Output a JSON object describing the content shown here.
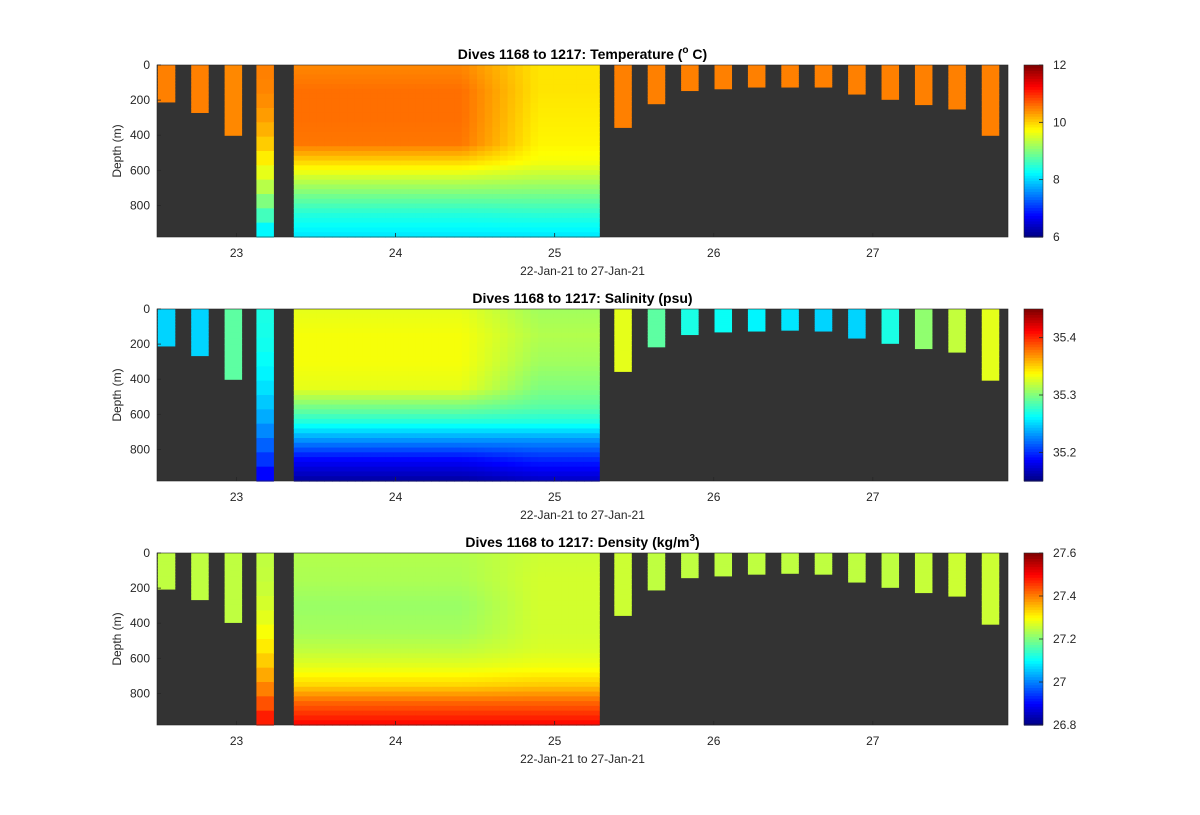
{
  "figure": {
    "background": "#ffffff",
    "plot_background": "#333333",
    "colormap": "jet"
  },
  "chart_data": [
    {
      "type": "heatmap",
      "title_text": "Dives 1168 to 1217: Temperature (",
      "title_sup": "o",
      "title_tail": " C)",
      "xlabel": "22-Jan-21 to 27-Jan-21",
      "ylabel": "Depth (m)",
      "xlim": [
        22.5,
        27.85
      ],
      "ylim": [
        0,
        980
      ],
      "y_reversed": true,
      "xticks": [
        "23",
        "24",
        "25",
        "26",
        "27"
      ],
      "yticks": [
        "0",
        "200",
        "400",
        "600",
        "800"
      ],
      "colorbar": {
        "clim": [
          6,
          12
        ],
        "ticks": [
          "6",
          "8",
          "10",
          "12"
        ]
      },
      "profiles": [
        {
          "x": 22.56,
          "max_depth": 210,
          "top_value": 10.5
        },
        {
          "x": 22.77,
          "max_depth": 270,
          "top_value": 10.5
        },
        {
          "x": 22.98,
          "max_depth": 400,
          "top_value": 10.45
        },
        {
          "x": 23.18,
          "max_depth": 980,
          "top_value": 10.5,
          "bottom_value": 8.0
        },
        {
          "x": 25.43,
          "max_depth": 355,
          "top_value": 10.5
        },
        {
          "x": 25.64,
          "max_depth": 220,
          "top_value": 10.5
        },
        {
          "x": 25.85,
          "max_depth": 145,
          "top_value": 10.5
        },
        {
          "x": 26.06,
          "max_depth": 135,
          "top_value": 10.5
        },
        {
          "x": 26.27,
          "max_depth": 125,
          "top_value": 10.5
        },
        {
          "x": 26.48,
          "max_depth": 125,
          "top_value": 10.5
        },
        {
          "x": 26.69,
          "max_depth": 125,
          "top_value": 10.5
        },
        {
          "x": 26.9,
          "max_depth": 165,
          "top_value": 10.5
        },
        {
          "x": 27.11,
          "max_depth": 195,
          "top_value": 10.5
        },
        {
          "x": 27.32,
          "max_depth": 225,
          "top_value": 10.5
        },
        {
          "x": 27.53,
          "max_depth": 250,
          "top_value": 10.5
        },
        {
          "x": 27.74,
          "max_depth": 400,
          "top_value": 10.5
        }
      ],
      "block": {
        "x_start": 23.36,
        "x_end": 25.28,
        "max_depth": 980,
        "depth_levels": [
          0,
          150,
          300,
          450,
          550,
          650,
          750,
          850,
          980
        ],
        "left_values": [
          10.45,
          10.6,
          10.6,
          10.55,
          10.0,
          9.4,
          8.9,
          8.45,
          8.1
        ],
        "right_values": [
          9.9,
          9.9,
          9.85,
          9.8,
          9.7,
          9.3,
          8.9,
          8.5,
          8.1
        ]
      }
    },
    {
      "type": "heatmap",
      "title_text": "Dives 1168 to 1217: Salinity (psu)",
      "title_sup": "",
      "title_tail": "",
      "xlabel": "22-Jan-21 to 27-Jan-21",
      "ylabel": "Depth (m)",
      "xlim": [
        22.5,
        27.85
      ],
      "ylim": [
        0,
        980
      ],
      "y_reversed": true,
      "xticks": [
        "23",
        "24",
        "25",
        "26",
        "27"
      ],
      "yticks": [
        "0",
        "200",
        "400",
        "600",
        "800"
      ],
      "colorbar": {
        "clim": [
          35.15,
          35.45
        ],
        "ticks": [
          "35.2",
          "35.3",
          "35.4"
        ]
      },
      "profiles": [
        {
          "x": 22.56,
          "max_depth": 210,
          "top_value": 35.25
        },
        {
          "x": 22.77,
          "max_depth": 265,
          "top_value": 35.25
        },
        {
          "x": 22.98,
          "max_depth": 400,
          "top_value": 35.29
        },
        {
          "x": 23.18,
          "max_depth": 980,
          "top_value": 35.27,
          "bottom_value": 35.18
        },
        {
          "x": 25.43,
          "max_depth": 355,
          "top_value": 35.33
        },
        {
          "x": 25.64,
          "max_depth": 215,
          "top_value": 35.29
        },
        {
          "x": 25.85,
          "max_depth": 145,
          "top_value": 35.27
        },
        {
          "x": 26.06,
          "max_depth": 130,
          "top_value": 35.265
        },
        {
          "x": 26.27,
          "max_depth": 125,
          "top_value": 35.26
        },
        {
          "x": 26.48,
          "max_depth": 120,
          "top_value": 35.255
        },
        {
          "x": 26.69,
          "max_depth": 125,
          "top_value": 35.25
        },
        {
          "x": 26.9,
          "max_depth": 165,
          "top_value": 35.25
        },
        {
          "x": 27.11,
          "max_depth": 195,
          "top_value": 35.27
        },
        {
          "x": 27.32,
          "max_depth": 225,
          "top_value": 35.305
        },
        {
          "x": 27.53,
          "max_depth": 245,
          "top_value": 35.32
        },
        {
          "x": 27.74,
          "max_depth": 405,
          "top_value": 35.33
        }
      ],
      "block": {
        "x_start": 23.36,
        "x_end": 25.28,
        "max_depth": 980,
        "depth_levels": [
          0,
          150,
          300,
          450,
          550,
          650,
          750,
          850,
          980
        ],
        "left_values": [
          35.33,
          35.335,
          35.335,
          35.33,
          35.3,
          35.27,
          35.23,
          35.19,
          35.16
        ],
        "right_values": [
          35.31,
          35.315,
          35.31,
          35.3,
          35.29,
          35.27,
          35.23,
          35.2,
          35.17
        ]
      }
    },
    {
      "type": "heatmap",
      "title_text": "Dives 1168 to 1217: Density (kg/m",
      "title_sup": "3",
      "title_tail": ")",
      "xlabel": "22-Jan-21 to 27-Jan-21",
      "ylabel": "Depth (m)",
      "xlim": [
        22.5,
        27.85
      ],
      "ylim": [
        0,
        980
      ],
      "y_reversed": true,
      "xticks": [
        "23",
        "24",
        "25",
        "26",
        "27"
      ],
      "yticks": [
        "0",
        "200",
        "400",
        "600",
        "800"
      ],
      "colorbar": {
        "clim": [
          26.8,
          27.6
        ],
        "ticks": [
          "26.8",
          "27",
          "27.2",
          "27.4",
          "27.6"
        ]
      },
      "profiles": [
        {
          "x": 22.56,
          "max_depth": 205,
          "top_value": 27.25
        },
        {
          "x": 22.77,
          "max_depth": 265,
          "top_value": 27.25
        },
        {
          "x": 22.98,
          "max_depth": 395,
          "top_value": 27.25
        },
        {
          "x": 23.18,
          "max_depth": 980,
          "top_value": 27.25,
          "bottom_value": 27.5
        },
        {
          "x": 25.43,
          "max_depth": 355,
          "top_value": 27.26
        },
        {
          "x": 25.64,
          "max_depth": 210,
          "top_value": 27.25
        },
        {
          "x": 25.85,
          "max_depth": 140,
          "top_value": 27.25
        },
        {
          "x": 26.06,
          "max_depth": 130,
          "top_value": 27.25
        },
        {
          "x": 26.27,
          "max_depth": 120,
          "top_value": 27.25
        },
        {
          "x": 26.48,
          "max_depth": 115,
          "top_value": 27.25
        },
        {
          "x": 26.69,
          "max_depth": 120,
          "top_value": 27.25
        },
        {
          "x": 26.9,
          "max_depth": 165,
          "top_value": 27.25
        },
        {
          "x": 27.11,
          "max_depth": 195,
          "top_value": 27.25
        },
        {
          "x": 27.32,
          "max_depth": 225,
          "top_value": 27.255
        },
        {
          "x": 27.53,
          "max_depth": 245,
          "top_value": 27.26
        },
        {
          "x": 27.74,
          "max_depth": 405,
          "top_value": 27.26
        }
      ],
      "block": {
        "x_start": 23.36,
        "x_end": 25.28,
        "max_depth": 980,
        "depth_levels": [
          0,
          150,
          300,
          450,
          550,
          650,
          750,
          850,
          980
        ],
        "left_values": [
          27.24,
          27.235,
          27.22,
          27.23,
          27.25,
          27.28,
          27.33,
          27.42,
          27.5
        ],
        "right_values": [
          27.26,
          27.265,
          27.265,
          27.265,
          27.27,
          27.29,
          27.34,
          27.42,
          27.5
        ]
      }
    }
  ]
}
